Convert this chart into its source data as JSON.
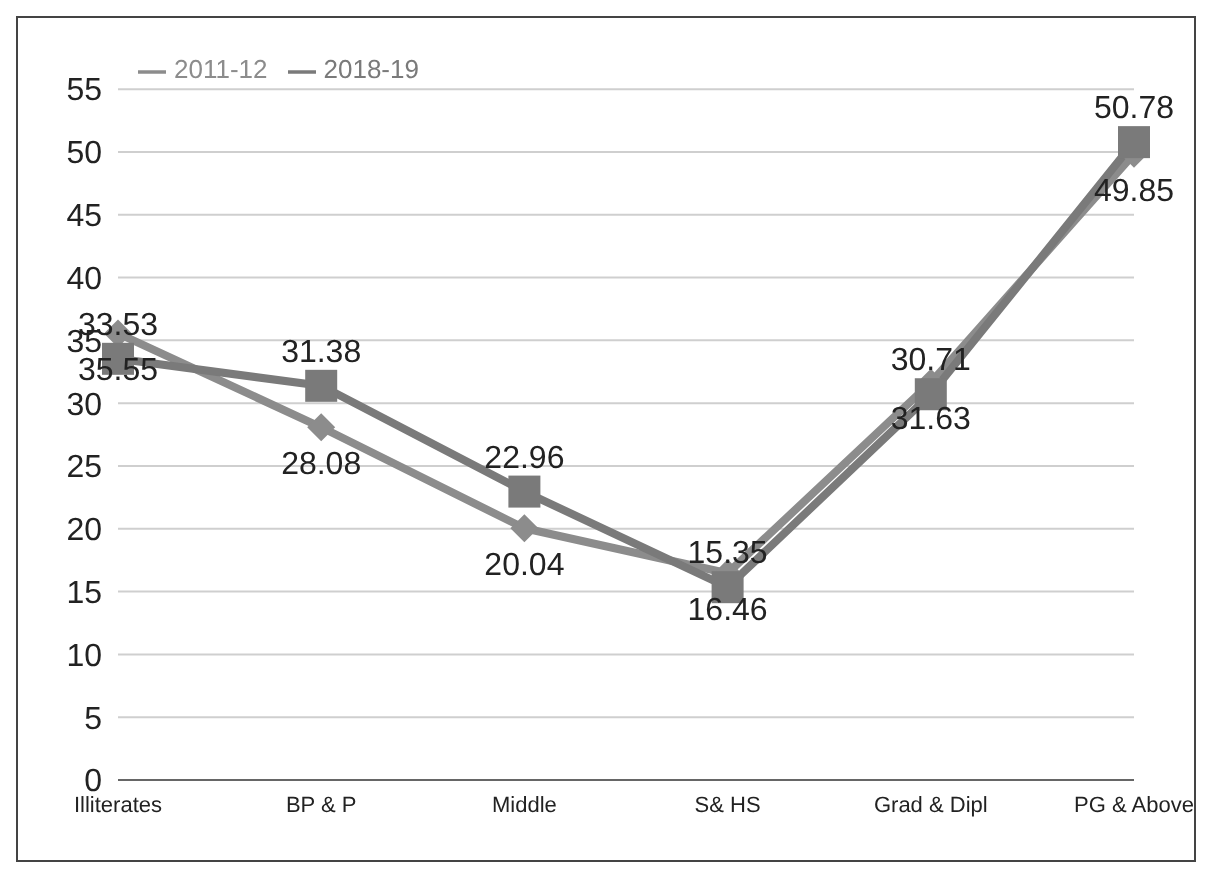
{
  "chart_data": {
    "type": "line",
    "categories": [
      "Illiterates",
      "BP & P",
      "Middle",
      "S& HS",
      "Grad & Dipl",
      "PG & Above"
    ],
    "series": [
      {
        "name": "2011-12",
        "color": "#8c8c8c",
        "marker": "diamond",
        "values": [
          35.55,
          28.08,
          20.04,
          16.46,
          31.63,
          49.85
        ]
      },
      {
        "name": "2018-19",
        "color": "#7a7a7a",
        "marker": "square",
        "values": [
          33.53,
          31.38,
          22.96,
          15.35,
          30.71,
          50.78
        ]
      }
    ],
    "ylim": [
      0,
      55
    ],
    "yticks": [
      0,
      5,
      10,
      15,
      20,
      25,
      30,
      35,
      40,
      45,
      50,
      55
    ],
    "grid": "y",
    "legend": "top left",
    "data_labels": true
  }
}
